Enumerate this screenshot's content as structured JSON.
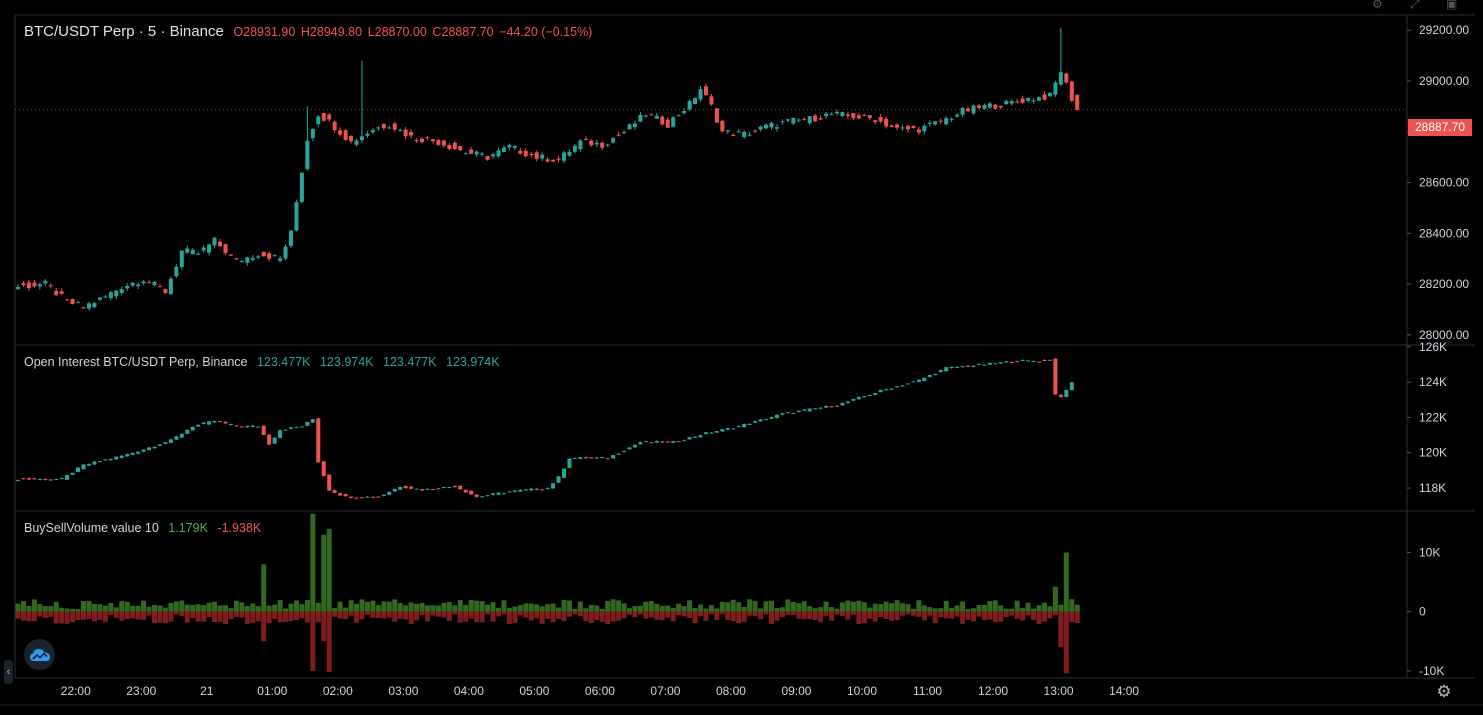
{
  "header": {
    "symbol": "BTC/USDT Perp · 5 · Binance",
    "open": "O28931.90",
    "high": "H28949.80",
    "low": "L28870.00",
    "close": "C28887.70",
    "change": "−44.20 (−0.15%)"
  },
  "oi_legend": {
    "label": "Open Interest BTC/USDT Perp, Binance",
    "values": [
      "123.477K",
      "123.974K",
      "123.477K",
      "123.974K"
    ]
  },
  "bsv_legend": {
    "label": "BuySellVolume value 10",
    "buy": "1.179K",
    "sell": "-1.938K"
  },
  "price_axis": {
    "ticks": [
      "29200.00",
      "29000.00",
      "28800.00",
      "28600.00",
      "28400.00",
      "28200.00",
      "28000.00"
    ],
    "last_price": "28887.70"
  },
  "oi_axis": {
    "ticks": [
      "126K",
      "124K",
      "122K",
      "120K",
      "118K"
    ]
  },
  "bsv_axis": {
    "ticks": [
      "10K",
      "0",
      "-10K"
    ]
  },
  "time_axis": {
    "ticks": [
      "22:00",
      "23:00",
      "21",
      "01:00",
      "02:00",
      "03:00",
      "04:00",
      "05:00",
      "06:00",
      "07:00",
      "08:00",
      "09:00",
      "10:00",
      "11:00",
      "12:00",
      "13:00",
      "14:00"
    ]
  },
  "colors": {
    "up": "#26a69a",
    "down": "#ef5350",
    "buy": "#33691e",
    "sell": "#7f1d1d",
    "grid": "#2a2e39",
    "text": "#d1d4dc"
  },
  "chart_data": [
    {
      "type": "candlestick",
      "title": "BTC/USDT Perp · 5 · Binance",
      "interval_minutes": 5,
      "x_start": "21:30",
      "x_end": "10:40",
      "ylim": [
        27960,
        29260
      ],
      "y_ticks": [
        28000,
        28200,
        28400,
        28600,
        28800,
        29000,
        29200
      ],
      "last_close": 28887.7,
      "close_path": [
        [
          0,
          28190
        ],
        [
          5,
          28200
        ],
        [
          9,
          28130
        ],
        [
          12,
          28110
        ],
        [
          16,
          28150
        ],
        [
          19,
          28190
        ],
        [
          23,
          28220
        ],
        [
          27,
          28170
        ],
        [
          30,
          28330
        ],
        [
          33,
          28320
        ],
        [
          36,
          28370
        ],
        [
          40,
          28290
        ],
        [
          44,
          28320
        ],
        [
          48,
          28300
        ],
        [
          50,
          28400
        ],
        [
          53,
          28770
        ],
        [
          55,
          28870
        ],
        [
          57,
          28840
        ],
        [
          61,
          28760
        ],
        [
          65,
          28810
        ],
        [
          68,
          28830
        ],
        [
          72,
          28780
        ],
        [
          77,
          28760
        ],
        [
          82,
          28720
        ],
        [
          86,
          28700
        ],
        [
          90,
          28740
        ],
        [
          95,
          28700
        ],
        [
          99,
          28690
        ],
        [
          103,
          28760
        ],
        [
          107,
          28750
        ],
        [
          111,
          28800
        ],
        [
          115,
          28870
        ],
        [
          119,
          28830
        ],
        [
          123,
          28910
        ],
        [
          125,
          28970
        ],
        [
          127,
          28900
        ],
        [
          129,
          28800
        ],
        [
          133,
          28790
        ],
        [
          137,
          28820
        ],
        [
          141,
          28840
        ],
        [
          145,
          28850
        ],
        [
          149,
          28870
        ],
        [
          153,
          28860
        ],
        [
          157,
          28850
        ],
        [
          161,
          28810
        ],
        [
          165,
          28810
        ],
        [
          169,
          28840
        ],
        [
          173,
          28880
        ],
        [
          177,
          28900
        ],
        [
          181,
          28910
        ],
        [
          185,
          28930
        ],
        [
          189,
          28940
        ],
        [
          191,
          29040
        ],
        [
          193,
          28932
        ],
        [
          194,
          28887.7
        ]
      ],
      "spikes": [
        [
          63,
          29080
        ],
        [
          53,
          28900
        ],
        [
          191,
          29210
        ]
      ]
    },
    {
      "type": "candlestick",
      "title": "Open Interest BTC/USDT Perp, Binance",
      "ylim": [
        116700,
        126100
      ],
      "y_ticks": [
        118000,
        120000,
        122000,
        124000,
        126000
      ],
      "units": "K",
      "close_path": [
        [
          0,
          118500
        ],
        [
          8,
          118500
        ],
        [
          12,
          119300
        ],
        [
          20,
          119900
        ],
        [
          28,
          120700
        ],
        [
          32,
          121500
        ],
        [
          36,
          121800
        ],
        [
          40,
          121500
        ],
        [
          44,
          121500
        ],
        [
          46,
          120500
        ],
        [
          48,
          121300
        ],
        [
          52,
          121500
        ],
        [
          54,
          121900
        ],
        [
          55,
          119500
        ],
        [
          57,
          117900
        ],
        [
          60,
          117500
        ],
        [
          66,
          117500
        ],
        [
          70,
          118100
        ],
        [
          74,
          117900
        ],
        [
          80,
          118100
        ],
        [
          84,
          117500
        ],
        [
          90,
          117800
        ],
        [
          97,
          118000
        ],
        [
          99,
          118600
        ],
        [
          101,
          119700
        ],
        [
          108,
          119700
        ],
        [
          114,
          120600
        ],
        [
          120,
          120600
        ],
        [
          126,
          121100
        ],
        [
          132,
          121500
        ],
        [
          140,
          122200
        ],
        [
          150,
          122700
        ],
        [
          158,
          123500
        ],
        [
          165,
          124100
        ],
        [
          170,
          124800
        ],
        [
          177,
          125000
        ],
        [
          183,
          125200
        ],
        [
          188,
          125200
        ],
        [
          189,
          125300
        ],
        [
          190,
          123300
        ],
        [
          191,
          123200
        ],
        [
          192,
          123500
        ],
        [
          193,
          123974
        ]
      ]
    },
    {
      "type": "bar",
      "title": "BuySellVolume value 10",
      "ylim": [
        -11200,
        17000
      ],
      "y_ticks": [
        -10000,
        0,
        10000
      ],
      "series": [
        {
          "name": "buy",
          "typical": 1200,
          "spikes": [
            [
              45,
              8000
            ],
            [
              54,
              16500
            ],
            [
              56,
              13000
            ],
            [
              57,
              14000
            ],
            [
              194,
              1179
            ],
            [
              190,
              4200
            ],
            [
              192,
              10000
            ]
          ]
        },
        {
          "name": "sell",
          "typical": -1200,
          "spikes": [
            [
              45,
              -5000
            ],
            [
              54,
              -10000
            ],
            [
              57,
              -10200
            ],
            [
              56,
              -5000
            ],
            [
              194,
              -1938
            ],
            [
              192,
              -10400
            ],
            [
              191,
              -6000
            ]
          ]
        }
      ]
    }
  ]
}
